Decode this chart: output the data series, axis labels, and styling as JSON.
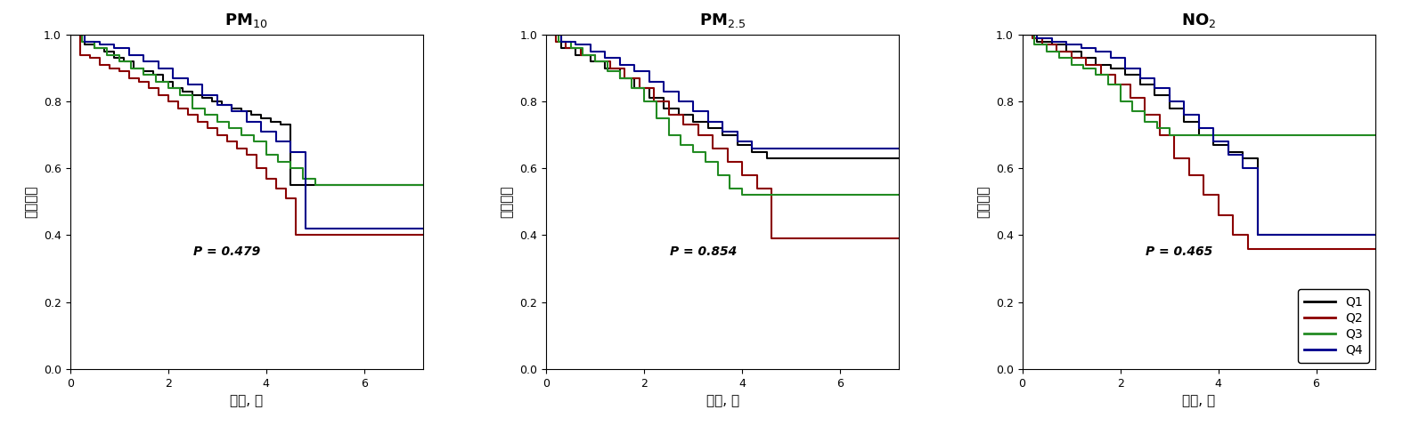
{
  "panels": [
    {
      "title": "PM$_{10}$",
      "pvalue": "P = 0.479",
      "curves": {
        "Q1": {
          "color": "#000000",
          "x": [
            0,
            0.3,
            0.3,
            0.5,
            0.5,
            0.7,
            0.7,
            0.9,
            0.9,
            1.1,
            1.1,
            1.3,
            1.3,
            1.5,
            1.5,
            1.7,
            1.7,
            1.9,
            1.9,
            2.1,
            2.1,
            2.3,
            2.3,
            2.5,
            2.5,
            2.7,
            2.7,
            2.9,
            2.9,
            3.1,
            3.1,
            3.3,
            3.3,
            3.5,
            3.5,
            3.7,
            3.7,
            3.9,
            3.9,
            4.1,
            4.1,
            4.3,
            4.3,
            4.5,
            4.5,
            5.0,
            5.0,
            7.2
          ],
          "y": [
            1.0,
            1.0,
            0.97,
            0.97,
            0.96,
            0.96,
            0.95,
            0.95,
            0.93,
            0.93,
            0.92,
            0.92,
            0.9,
            0.9,
            0.89,
            0.89,
            0.88,
            0.88,
            0.86,
            0.86,
            0.84,
            0.84,
            0.83,
            0.83,
            0.82,
            0.82,
            0.81,
            0.81,
            0.8,
            0.8,
            0.79,
            0.79,
            0.78,
            0.78,
            0.77,
            0.77,
            0.76,
            0.76,
            0.75,
            0.75,
            0.74,
            0.74,
            0.73,
            0.73,
            0.55,
            0.55,
            0.55,
            0.55
          ]
        },
        "Q2": {
          "color": "#8B0000",
          "x": [
            0,
            0.2,
            0.2,
            0.4,
            0.4,
            0.6,
            0.6,
            0.8,
            0.8,
            1.0,
            1.0,
            1.2,
            1.2,
            1.4,
            1.4,
            1.6,
            1.6,
            1.8,
            1.8,
            2.0,
            2.0,
            2.2,
            2.2,
            2.4,
            2.4,
            2.6,
            2.6,
            2.8,
            2.8,
            3.0,
            3.0,
            3.2,
            3.2,
            3.4,
            3.4,
            3.6,
            3.6,
            3.8,
            3.8,
            4.0,
            4.0,
            4.2,
            4.2,
            4.4,
            4.4,
            4.6,
            4.6,
            7.2
          ],
          "y": [
            1.0,
            1.0,
            0.94,
            0.94,
            0.93,
            0.93,
            0.91,
            0.91,
            0.9,
            0.9,
            0.89,
            0.89,
            0.87,
            0.87,
            0.86,
            0.86,
            0.84,
            0.84,
            0.82,
            0.82,
            0.8,
            0.8,
            0.78,
            0.78,
            0.76,
            0.76,
            0.74,
            0.74,
            0.72,
            0.72,
            0.7,
            0.7,
            0.68,
            0.68,
            0.66,
            0.66,
            0.64,
            0.64,
            0.6,
            0.6,
            0.57,
            0.57,
            0.54,
            0.54,
            0.51,
            0.51,
            0.4,
            0.4
          ]
        },
        "Q3": {
          "color": "#228B22",
          "x": [
            0,
            0.25,
            0.25,
            0.5,
            0.5,
            0.75,
            0.75,
            1.0,
            1.0,
            1.25,
            1.25,
            1.5,
            1.5,
            1.75,
            1.75,
            2.0,
            2.0,
            2.25,
            2.25,
            2.5,
            2.5,
            2.75,
            2.75,
            3.0,
            3.0,
            3.25,
            3.25,
            3.5,
            3.5,
            3.75,
            3.75,
            4.0,
            4.0,
            4.25,
            4.25,
            4.5,
            4.5,
            4.75,
            4.75,
            5.0,
            5.0,
            5.5,
            5.5,
            7.2
          ],
          "y": [
            1.0,
            1.0,
            0.98,
            0.98,
            0.96,
            0.96,
            0.94,
            0.94,
            0.92,
            0.92,
            0.9,
            0.9,
            0.88,
            0.88,
            0.86,
            0.86,
            0.84,
            0.84,
            0.82,
            0.82,
            0.78,
            0.78,
            0.76,
            0.76,
            0.74,
            0.74,
            0.72,
            0.72,
            0.7,
            0.7,
            0.68,
            0.68,
            0.64,
            0.64,
            0.62,
            0.62,
            0.6,
            0.6,
            0.57,
            0.57,
            0.55,
            0.55,
            0.55,
            0.55
          ]
        },
        "Q4": {
          "color": "#00008B",
          "x": [
            0,
            0.3,
            0.3,
            0.6,
            0.6,
            0.9,
            0.9,
            1.2,
            1.2,
            1.5,
            1.5,
            1.8,
            1.8,
            2.1,
            2.1,
            2.4,
            2.4,
            2.7,
            2.7,
            3.0,
            3.0,
            3.3,
            3.3,
            3.6,
            3.6,
            3.9,
            3.9,
            4.2,
            4.2,
            4.5,
            4.5,
            4.8,
            4.8,
            7.2
          ],
          "y": [
            1.0,
            1.0,
            0.98,
            0.98,
            0.97,
            0.97,
            0.96,
            0.96,
            0.94,
            0.94,
            0.92,
            0.92,
            0.9,
            0.9,
            0.87,
            0.87,
            0.85,
            0.85,
            0.82,
            0.82,
            0.79,
            0.79,
            0.77,
            0.77,
            0.74,
            0.74,
            0.71,
            0.71,
            0.68,
            0.68,
            0.65,
            0.65,
            0.42,
            0.42
          ]
        }
      }
    },
    {
      "title": "PM$_{2.5}$",
      "pvalue": "P = 0.854",
      "curves": {
        "Q1": {
          "color": "#000000",
          "x": [
            0,
            0.3,
            0.3,
            0.6,
            0.6,
            0.9,
            0.9,
            1.2,
            1.2,
            1.5,
            1.5,
            1.8,
            1.8,
            2.1,
            2.1,
            2.4,
            2.4,
            2.7,
            2.7,
            3.0,
            3.0,
            3.3,
            3.3,
            3.6,
            3.6,
            3.9,
            3.9,
            4.2,
            4.2,
            4.5,
            4.5,
            4.8,
            4.8,
            7.2
          ],
          "y": [
            1.0,
            1.0,
            0.96,
            0.96,
            0.94,
            0.94,
            0.92,
            0.92,
            0.9,
            0.9,
            0.87,
            0.87,
            0.84,
            0.84,
            0.81,
            0.81,
            0.78,
            0.78,
            0.76,
            0.76,
            0.74,
            0.74,
            0.72,
            0.72,
            0.7,
            0.7,
            0.67,
            0.67,
            0.65,
            0.65,
            0.63,
            0.63,
            0.63,
            0.63
          ]
        },
        "Q2": {
          "color": "#8B0000",
          "x": [
            0,
            0.2,
            0.2,
            0.4,
            0.4,
            0.7,
            0.7,
            1.0,
            1.0,
            1.3,
            1.3,
            1.6,
            1.6,
            1.9,
            1.9,
            2.2,
            2.2,
            2.5,
            2.5,
            2.8,
            2.8,
            3.1,
            3.1,
            3.4,
            3.4,
            3.7,
            3.7,
            4.0,
            4.0,
            4.3,
            4.3,
            4.6,
            4.6,
            7.2
          ],
          "y": [
            1.0,
            1.0,
            0.98,
            0.98,
            0.96,
            0.96,
            0.94,
            0.94,
            0.92,
            0.92,
            0.9,
            0.9,
            0.87,
            0.87,
            0.84,
            0.84,
            0.8,
            0.8,
            0.76,
            0.76,
            0.73,
            0.73,
            0.7,
            0.7,
            0.66,
            0.66,
            0.62,
            0.62,
            0.58,
            0.58,
            0.54,
            0.54,
            0.39,
            0.39
          ]
        },
        "Q3": {
          "color": "#228B22",
          "x": [
            0,
            0.25,
            0.25,
            0.5,
            0.5,
            0.75,
            0.75,
            1.0,
            1.0,
            1.25,
            1.25,
            1.5,
            1.5,
            1.75,
            1.75,
            2.0,
            2.0,
            2.25,
            2.25,
            2.5,
            2.5,
            2.75,
            2.75,
            3.0,
            3.0,
            3.25,
            3.25,
            3.5,
            3.5,
            3.75,
            3.75,
            4.0,
            4.0,
            4.25,
            4.25,
            7.2
          ],
          "y": [
            1.0,
            1.0,
            0.98,
            0.98,
            0.96,
            0.96,
            0.94,
            0.94,
            0.92,
            0.92,
            0.89,
            0.89,
            0.87,
            0.87,
            0.84,
            0.84,
            0.8,
            0.8,
            0.75,
            0.75,
            0.7,
            0.7,
            0.67,
            0.67,
            0.65,
            0.65,
            0.62,
            0.62,
            0.58,
            0.58,
            0.54,
            0.54,
            0.52,
            0.52,
            0.52,
            0.52
          ]
        },
        "Q4": {
          "color": "#00008B",
          "x": [
            0,
            0.3,
            0.3,
            0.6,
            0.6,
            0.9,
            0.9,
            1.2,
            1.2,
            1.5,
            1.5,
            1.8,
            1.8,
            2.1,
            2.1,
            2.4,
            2.4,
            2.7,
            2.7,
            3.0,
            3.0,
            3.3,
            3.3,
            3.6,
            3.6,
            3.9,
            3.9,
            4.2,
            4.2,
            4.5,
            4.5,
            7.2
          ],
          "y": [
            1.0,
            1.0,
            0.98,
            0.98,
            0.97,
            0.97,
            0.95,
            0.95,
            0.93,
            0.93,
            0.91,
            0.91,
            0.89,
            0.89,
            0.86,
            0.86,
            0.83,
            0.83,
            0.8,
            0.8,
            0.77,
            0.77,
            0.74,
            0.74,
            0.71,
            0.71,
            0.68,
            0.68,
            0.66,
            0.66,
            0.66,
            0.66
          ]
        }
      }
    },
    {
      "title": "NO$_2$",
      "pvalue": "P = 0.465",
      "curves": {
        "Q1": {
          "color": "#000000",
          "x": [
            0,
            0.3,
            0.3,
            0.6,
            0.6,
            0.9,
            0.9,
            1.2,
            1.2,
            1.5,
            1.5,
            1.8,
            1.8,
            2.1,
            2.1,
            2.4,
            2.4,
            2.7,
            2.7,
            3.0,
            3.0,
            3.3,
            3.3,
            3.6,
            3.6,
            3.9,
            3.9,
            4.2,
            4.2,
            4.5,
            4.5,
            4.8,
            4.8,
            7.2
          ],
          "y": [
            1.0,
            1.0,
            0.98,
            0.98,
            0.97,
            0.97,
            0.95,
            0.95,
            0.93,
            0.93,
            0.91,
            0.91,
            0.9,
            0.9,
            0.88,
            0.88,
            0.85,
            0.85,
            0.82,
            0.82,
            0.78,
            0.78,
            0.74,
            0.74,
            0.7,
            0.7,
            0.67,
            0.67,
            0.65,
            0.65,
            0.63,
            0.63,
            0.4,
            0.4
          ]
        },
        "Q2": {
          "color": "#8B0000",
          "x": [
            0,
            0.2,
            0.2,
            0.4,
            0.4,
            0.7,
            0.7,
            1.0,
            1.0,
            1.3,
            1.3,
            1.6,
            1.6,
            1.9,
            1.9,
            2.2,
            2.2,
            2.5,
            2.5,
            2.8,
            2.8,
            3.1,
            3.1,
            3.4,
            3.4,
            3.7,
            3.7,
            4.0,
            4.0,
            4.3,
            4.3,
            4.6,
            4.6,
            7.2
          ],
          "y": [
            1.0,
            1.0,
            0.99,
            0.99,
            0.97,
            0.97,
            0.95,
            0.95,
            0.93,
            0.93,
            0.91,
            0.91,
            0.88,
            0.88,
            0.85,
            0.85,
            0.81,
            0.81,
            0.76,
            0.76,
            0.7,
            0.7,
            0.63,
            0.63,
            0.58,
            0.58,
            0.52,
            0.52,
            0.46,
            0.46,
            0.4,
            0.4,
            0.36,
            0.36
          ]
        },
        "Q3": {
          "color": "#228B22",
          "x": [
            0,
            0.25,
            0.25,
            0.5,
            0.5,
            0.75,
            0.75,
            1.0,
            1.0,
            1.25,
            1.25,
            1.5,
            1.5,
            1.75,
            1.75,
            2.0,
            2.0,
            2.25,
            2.25,
            2.5,
            2.5,
            2.75,
            2.75,
            3.0,
            3.0,
            3.25,
            3.25,
            7.2
          ],
          "y": [
            1.0,
            1.0,
            0.97,
            0.97,
            0.95,
            0.95,
            0.93,
            0.93,
            0.91,
            0.91,
            0.9,
            0.9,
            0.88,
            0.88,
            0.85,
            0.85,
            0.8,
            0.8,
            0.77,
            0.77,
            0.74,
            0.74,
            0.72,
            0.72,
            0.7,
            0.7,
            0.7,
            0.7
          ]
        },
        "Q4": {
          "color": "#00008B",
          "x": [
            0,
            0.3,
            0.3,
            0.6,
            0.6,
            0.9,
            0.9,
            1.2,
            1.2,
            1.5,
            1.5,
            1.8,
            1.8,
            2.1,
            2.1,
            2.4,
            2.4,
            2.7,
            2.7,
            3.0,
            3.0,
            3.3,
            3.3,
            3.6,
            3.6,
            3.9,
            3.9,
            4.2,
            4.2,
            4.5,
            4.5,
            4.8,
            4.8,
            7.2
          ],
          "y": [
            1.0,
            1.0,
            0.99,
            0.99,
            0.98,
            0.98,
            0.97,
            0.97,
            0.96,
            0.96,
            0.95,
            0.95,
            0.93,
            0.93,
            0.9,
            0.9,
            0.87,
            0.87,
            0.84,
            0.84,
            0.8,
            0.8,
            0.76,
            0.76,
            0.72,
            0.72,
            0.68,
            0.68,
            0.64,
            0.64,
            0.6,
            0.6,
            0.4,
            0.4
          ]
        }
      }
    }
  ],
  "legend_labels": [
    "Q1",
    "Q2",
    "Q3",
    "Q4"
  ],
  "legend_colors": [
    "#000000",
    "#8B0000",
    "#228B22",
    "#00008B"
  ],
  "ylabel": "생존확률",
  "xlabel": "기간, 연",
  "xlim": [
    0,
    7.2
  ],
  "ylim": [
    0.0,
    1.0
  ],
  "yticks": [
    0.0,
    0.2,
    0.4,
    0.6,
    0.8,
    1.0
  ],
  "xticks": [
    0,
    2,
    4,
    6
  ],
  "background_color": "#ffffff",
  "linewidth": 1.5
}
